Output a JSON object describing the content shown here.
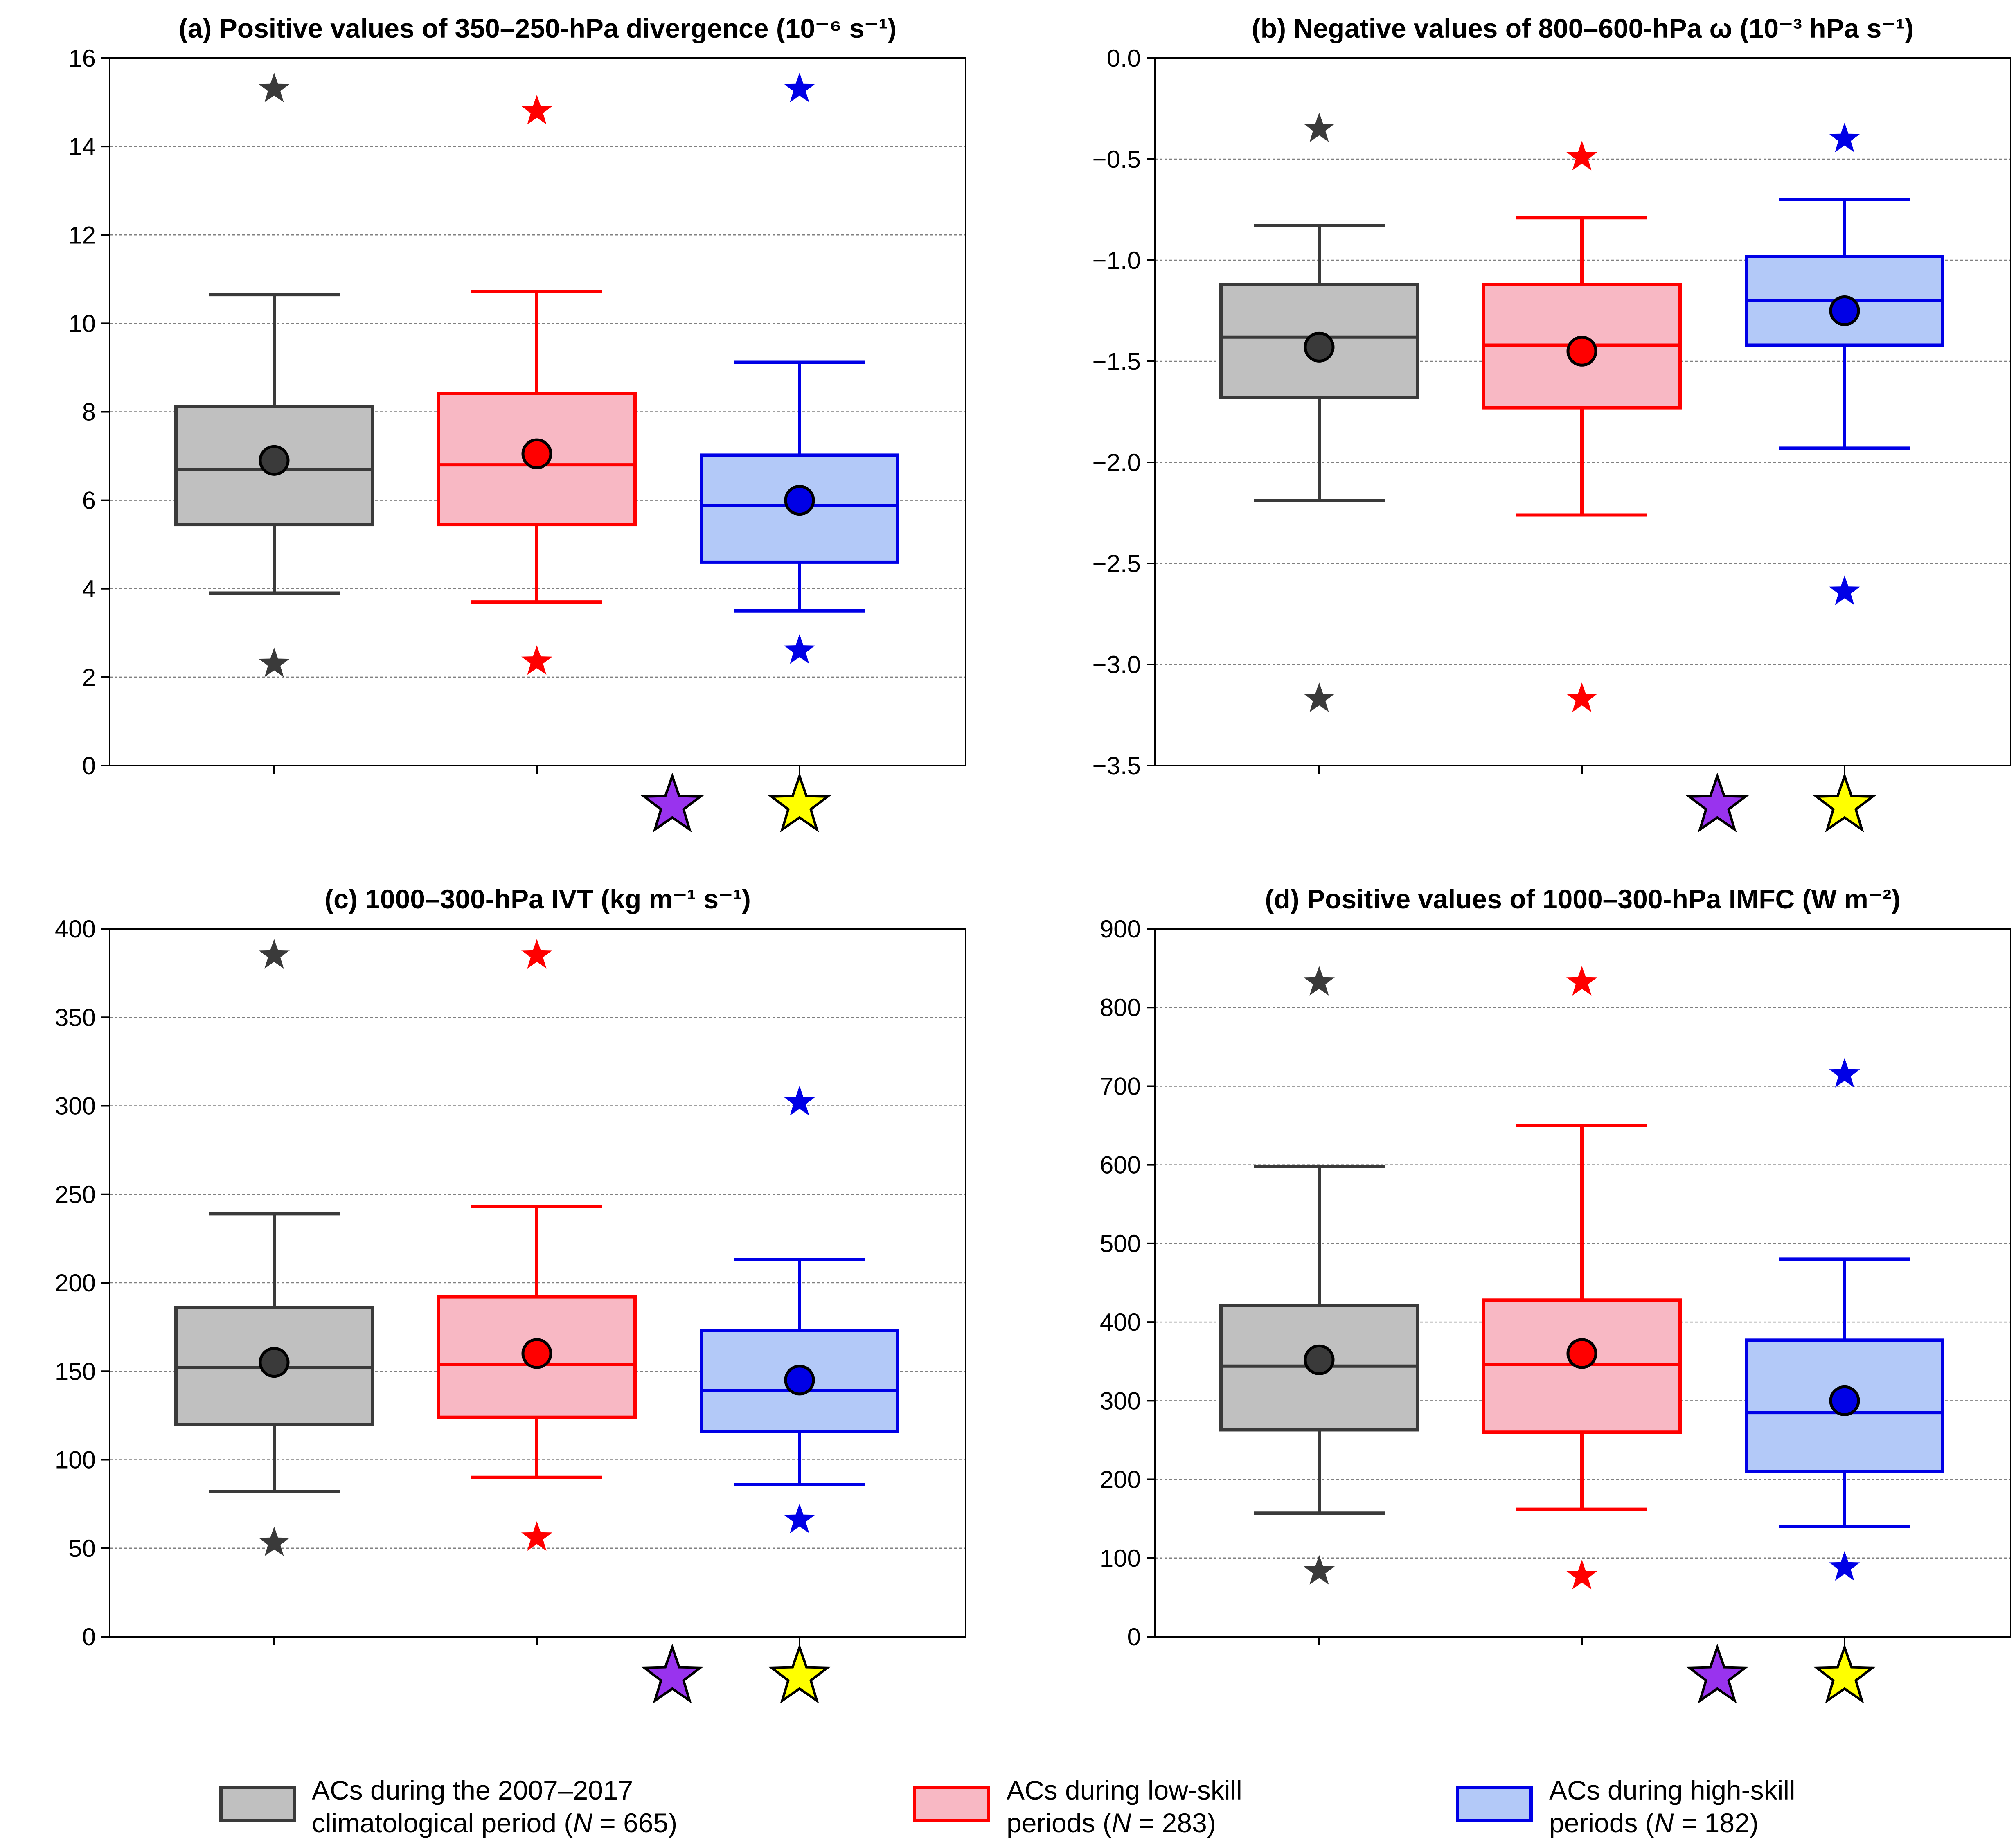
{
  "legend": [
    {
      "line1": "ACs during the 2007–2017",
      "line2_pre": "climatological period (",
      "n_label": "N",
      "line2_post": " = 665)",
      "face": "#c0c0c0",
      "edge": "#3a3a3a"
    },
    {
      "line1": "ACs during low-skill",
      "line2_pre": "periods (",
      "n_label": "N",
      "line2_post": " = 283)",
      "face": "#f8b8c4",
      "edge": "#ff0000"
    },
    {
      "line1": "ACs during high-skill",
      "line2_pre": "periods (",
      "n_label": "N",
      "line2_post": " = 182)",
      "face": "#b3c9f8",
      "edge": "#0000e6"
    }
  ],
  "significance_markers": [
    {
      "name": "purple-star",
      "color": "#9933ee"
    },
    {
      "name": "yellow-star",
      "color": "#ffff00"
    }
  ],
  "chart_data": [
    {
      "type": "box",
      "title": "(a) Positive values of 350–250-hPa divergence (10⁻⁶ s⁻¹)",
      "ylim": [
        0,
        16
      ],
      "yticks": [
        0,
        2,
        4,
        6,
        8,
        10,
        12,
        14,
        16
      ],
      "ytick_labels": [
        "0",
        "2",
        "4",
        "6",
        "8",
        "10",
        "12",
        "14",
        "16"
      ],
      "grid": true,
      "series": [
        {
          "whislo": 3.9,
          "q1": 5.45,
          "med": 6.7,
          "q3": 8.12,
          "whishi": 10.65,
          "mean": 6.9,
          "star_low": 2.3,
          "star_high": 15.3
        },
        {
          "whislo": 3.7,
          "q1": 5.45,
          "med": 6.8,
          "q3": 8.42,
          "whishi": 10.72,
          "mean": 7.05,
          "star_low": 2.35,
          "star_high": 14.8
        },
        {
          "whislo": 3.5,
          "q1": 4.6,
          "med": 5.88,
          "q3": 7.02,
          "whishi": 9.12,
          "mean": 6.0,
          "star_low": 2.6,
          "star_high": 15.3
        }
      ]
    },
    {
      "type": "box",
      "title": "(b) Negative values of 800–600-hPa ω (10⁻³ hPa s⁻¹)",
      "ylim": [
        -3.5,
        0.0
      ],
      "yticks": [
        -3.5,
        -3.0,
        -2.5,
        -2.0,
        -1.5,
        -1.0,
        -0.5,
        0.0
      ],
      "ytick_labels": [
        "−3.5",
        "−3.0",
        "−2.5",
        "−2.0",
        "−1.5",
        "−1.0",
        "−0.5",
        "0.0"
      ],
      "grid": true,
      "series": [
        {
          "whislo": -2.19,
          "q1": -1.68,
          "med": -1.38,
          "q3": -1.12,
          "whishi": -0.83,
          "mean": -1.43,
          "star_low": -3.17,
          "star_high": -0.35
        },
        {
          "whislo": -2.26,
          "q1": -1.73,
          "med": -1.42,
          "q3": -1.12,
          "whishi": -0.79,
          "mean": -1.45,
          "star_low": -3.17,
          "star_high": -0.49
        },
        {
          "whislo": -1.93,
          "q1": -1.42,
          "med": -1.2,
          "q3": -0.98,
          "whishi": -0.7,
          "mean": -1.25,
          "star_low": -2.64,
          "star_high": -0.4
        }
      ]
    },
    {
      "type": "box",
      "title": "(c) 1000–300-hPa IVT (kg m⁻¹ s⁻¹)",
      "ylim": [
        0,
        400
      ],
      "yticks": [
        0,
        50,
        100,
        150,
        200,
        250,
        300,
        350,
        400
      ],
      "ytick_labels": [
        "0",
        "50",
        "100",
        "150",
        "200",
        "250",
        "300",
        "350",
        "400"
      ],
      "grid": true,
      "series": [
        {
          "whislo": 82,
          "q1": 120,
          "med": 152,
          "q3": 186,
          "whishi": 239,
          "mean": 155,
          "star_low": 53,
          "star_high": 385
        },
        {
          "whislo": 90,
          "q1": 124,
          "med": 154,
          "q3": 192,
          "whishi": 243,
          "mean": 160,
          "star_low": 56,
          "star_high": 385
        },
        {
          "whislo": 86,
          "q1": 116,
          "med": 139,
          "q3": 173,
          "whishi": 213,
          "mean": 145,
          "star_low": 66,
          "star_high": 302
        }
      ]
    },
    {
      "type": "box",
      "title": "(d) Positive values of 1000–300-hPa IMFC (W m⁻²)",
      "ylim": [
        0,
        900
      ],
      "yticks": [
        0,
        100,
        200,
        300,
        400,
        500,
        600,
        700,
        800,
        900
      ],
      "ytick_labels": [
        "0",
        "100",
        "200",
        "300",
        "400",
        "500",
        "600",
        "700",
        "800",
        "900"
      ],
      "grid": true,
      "series": [
        {
          "whislo": 157,
          "q1": 263,
          "med": 344,
          "q3": 421,
          "whishi": 598,
          "mean": 352,
          "star_low": 83,
          "star_high": 832
        },
        {
          "whislo": 162,
          "q1": 260,
          "med": 346,
          "q3": 428,
          "whishi": 650,
          "mean": 360,
          "star_low": 77,
          "star_high": 832
        },
        {
          "whislo": 140,
          "q1": 210,
          "med": 285,
          "q3": 377,
          "whishi": 480,
          "mean": 300,
          "star_low": 88,
          "star_high": 715
        }
      ]
    }
  ]
}
